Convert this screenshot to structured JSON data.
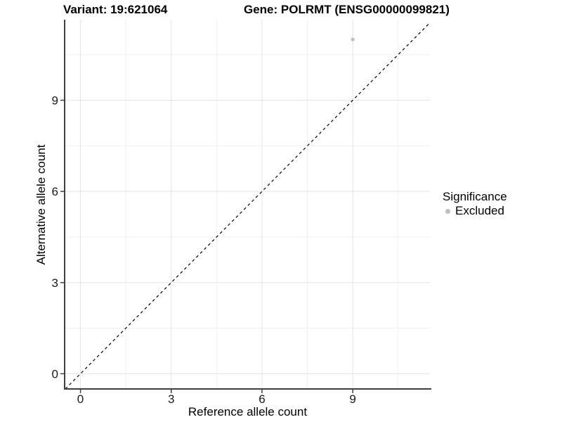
{
  "chart_data": {
    "type": "scatter",
    "titles": {
      "left": "Variant: 19:621064",
      "right": "Gene: POLRMT (ENSG00000099821)"
    },
    "xlabel": "Reference allele count",
    "ylabel": "Alternative allele count",
    "xlim": [
      -0.5,
      11.55
    ],
    "ylim": [
      -0.5,
      11.65
    ],
    "x_ticks": [
      0,
      3,
      6,
      9
    ],
    "y_ticks": [
      0,
      3,
      6,
      9
    ],
    "x_minor_ticks": [
      1.5,
      4.5,
      7.5,
      10.5
    ],
    "y_minor_ticks": [
      1.5,
      4.5,
      7.5,
      10.5
    ],
    "grid": true,
    "legend_title": "Significance",
    "legend_position": "right",
    "series": [
      {
        "name": "Excluded",
        "color": "#bfbfbf",
        "points": [
          {
            "x": 9,
            "y": 11
          }
        ]
      }
    ],
    "reference_line": {
      "kind": "identity",
      "equation": "y = x",
      "style": "dashed",
      "color": "#000000"
    },
    "colors": {
      "grid_major": "#e3e3e3",
      "grid_minor": "#f0f0f0",
      "axis": "#404040",
      "tick_text": "#1a1a1a"
    }
  }
}
